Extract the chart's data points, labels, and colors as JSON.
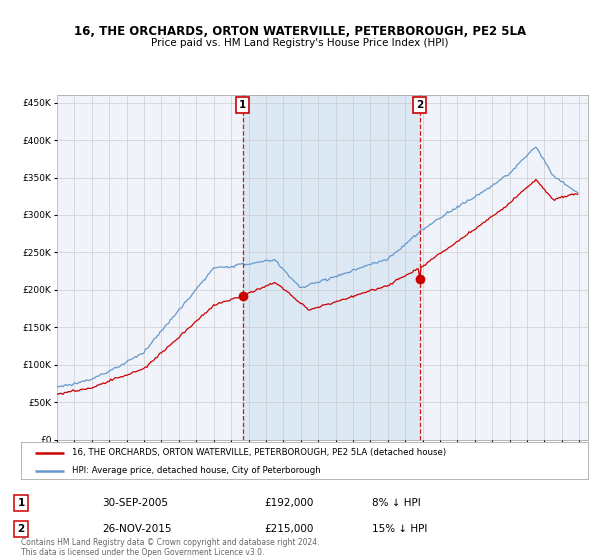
{
  "title_line1": "16, THE ORCHARDS, ORTON WATERVILLE, PETERBOROUGH, PE2 5LA",
  "title_line2": "Price paid vs. HM Land Registry's House Price Index (HPI)",
  "background_color": "#ffffff",
  "plot_bg_color": "#f0f4fa",
  "highlight_color": "#dce9f5",
  "grid_color": "#cccccc",
  "sale1_date_label": "30-SEP-2005",
  "sale1_price": 192000,
  "sale1_text": "£192,000",
  "sale1_pct": "8% ↓ HPI",
  "sale2_date_label": "26-NOV-2015",
  "sale2_price": 215000,
  "sale2_text": "£215,000",
  "sale2_pct": "15% ↓ HPI",
  "legend_line1": "16, THE ORCHARDS, ORTON WATERVILLE, PETERBOROUGH, PE2 5LA (detached house)",
  "legend_line2": "HPI: Average price, detached house, City of Peterborough",
  "footnote": "Contains HM Land Registry data © Crown copyright and database right 2024.\nThis data is licensed under the Open Government Licence v3.0.",
  "red_color": "#cc0000",
  "blue_color": "#6699cc",
  "vline_color": "#cc0000",
  "ylim_min": 0,
  "ylim_max": 460000,
  "yticks": [
    0,
    50000,
    100000,
    150000,
    200000,
    250000,
    300000,
    350000,
    400000,
    450000
  ],
  "xmin": 1995,
  "xmax": 2025.5
}
